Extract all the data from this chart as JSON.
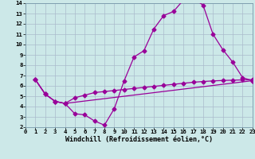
{
  "xlabel": "Windchill (Refroidissement éolien,°C)",
  "bg_color": "#cce8e8",
  "line_color": "#990099",
  "grid_color": "#aabbcc",
  "xlim": [
    0,
    23
  ],
  "ylim": [
    2,
    14
  ],
  "xticks": [
    0,
    1,
    2,
    3,
    4,
    5,
    6,
    7,
    8,
    9,
    10,
    11,
    12,
    13,
    14,
    15,
    16,
    17,
    18,
    19,
    20,
    21,
    22,
    23
  ],
  "yticks": [
    2,
    3,
    4,
    5,
    6,
    7,
    8,
    9,
    10,
    11,
    12,
    13,
    14
  ],
  "line1_x": [
    1,
    2,
    3,
    4,
    5,
    6,
    7,
    8,
    9,
    10,
    11,
    12,
    13,
    14,
    15,
    16,
    17,
    18,
    19,
    20,
    21,
    22,
    23
  ],
  "line1_y": [
    6.6,
    5.2,
    4.5,
    4.3,
    3.3,
    3.2,
    2.6,
    2.2,
    3.8,
    6.5,
    8.8,
    9.4,
    11.5,
    12.8,
    13.2,
    14.3,
    14.5,
    13.8,
    11.0,
    9.5,
    8.3,
    6.8,
    6.5
  ],
  "line2_x": [
    1,
    2,
    3,
    4,
    23
  ],
  "line2_y": [
    6.6,
    5.2,
    4.5,
    4.3,
    6.5
  ],
  "line3_x": [
    1,
    2,
    3,
    4,
    5,
    6,
    7,
    8,
    9,
    10,
    11,
    12,
    13,
    14,
    15,
    16,
    17,
    18,
    19,
    20,
    21,
    22,
    23
  ],
  "line3_y": [
    6.6,
    5.2,
    4.5,
    4.3,
    4.85,
    5.1,
    5.35,
    5.45,
    5.55,
    5.65,
    5.75,
    5.85,
    5.95,
    6.05,
    6.15,
    6.25,
    6.35,
    6.42,
    6.48,
    6.52,
    6.55,
    6.58,
    6.6
  ],
  "marker_size": 2.5,
  "linewidth": 0.9,
  "tick_fontsize": 5.2,
  "xlabel_fontsize": 6.0
}
